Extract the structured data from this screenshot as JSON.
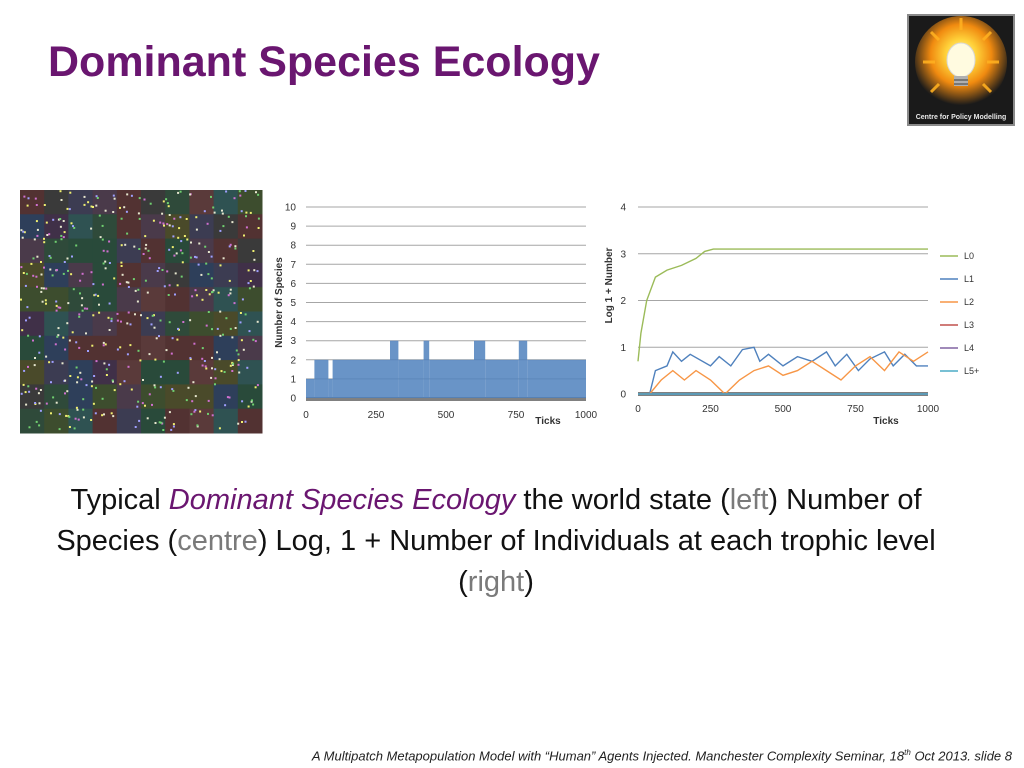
{
  "slide": {
    "title": "Dominant Species Ecology",
    "logo_text": "Centre for Policy Modelling",
    "caption": {
      "part1": "Typical ",
      "part2_italic": "Dominant Species Ecology",
      "part3": " the world state (",
      "part4_grey": "left",
      "part5": ") Number of Species (",
      "part6_grey": "centre",
      "part7": ") Log, 1 + Number of Individuals at each trophic level (",
      "part8_grey": "right",
      "part9": ")"
    },
    "footer": {
      "text_before": "A Multipatch Metapopulation Model with “Human” Agents Injected. Manchester Complexity Seminar, 18",
      "superscript": "th",
      "text_after": " Oct 2013.  slide   8"
    }
  },
  "colors": {
    "title": "#6a1670",
    "species_bar": "#4f81bd",
    "L0": "#9bbb59",
    "L1": "#4f81bd",
    "L2": "#f79646",
    "L3": "#c0504d",
    "L4": "#8064a2",
    "L5+": "#4bacc6"
  },
  "chart_data": [
    {
      "type": "line",
      "position": "centre",
      "title": "",
      "xlabel": "Ticks",
      "ylabel": "Number of Species",
      "xlim": [
        0,
        1000
      ],
      "ylim": [
        0,
        10
      ],
      "x_ticks": [
        0,
        250,
        500,
        750,
        1000
      ],
      "y_ticks": [
        0,
        1,
        2,
        3,
        4,
        5,
        6,
        7,
        8,
        9,
        10
      ],
      "grid": true,
      "series": [
        {
          "values_by_segment": [
            {
              "x": [
                0,
                30
              ],
              "y": 1
            },
            {
              "x": [
                30,
                80
              ],
              "y": 2
            },
            {
              "x": [
                80,
                95
              ],
              "y": 1
            },
            {
              "x": [
                95,
                300
              ],
              "y": 2
            },
            {
              "x": [
                300,
                330
              ],
              "y": 3
            },
            {
              "x": [
                330,
                420
              ],
              "y": 2
            },
            {
              "x": [
                420,
                440
              ],
              "y": 3
            },
            {
              "x": [
                440,
                600
              ],
              "y": 2
            },
            {
              "x": [
                600,
                640
              ],
              "y": 3
            },
            {
              "x": [
                640,
                760
              ],
              "y": 2
            },
            {
              "x": [
                760,
                790
              ],
              "y": 3
            },
            {
              "x": [
                790,
                1000
              ],
              "y": 2
            }
          ]
        }
      ]
    },
    {
      "type": "line",
      "position": "right",
      "title": "",
      "xlabel": "Ticks",
      "ylabel": "Log 1 + Number",
      "xlim": [
        0,
        1000
      ],
      "ylim": [
        0,
        4
      ],
      "x_ticks": [
        0,
        250,
        500,
        750,
        1000
      ],
      "y_ticks": [
        0,
        1,
        2,
        3,
        4
      ],
      "grid": true,
      "legend_position": "right",
      "series": [
        {
          "name": "L0",
          "x": [
            0,
            10,
            30,
            60,
            100,
            150,
            200,
            230,
            260,
            400,
            600,
            800,
            1000
          ],
          "y": [
            0.7,
            1.3,
            2.0,
            2.5,
            2.65,
            2.75,
            2.9,
            3.05,
            3.1,
            3.1,
            3.1,
            3.1,
            3.1
          ]
        },
        {
          "name": "L1",
          "x": [
            0,
            40,
            60,
            100,
            120,
            150,
            180,
            250,
            280,
            320,
            360,
            400,
            420,
            450,
            500,
            550,
            600,
            650,
            680,
            720,
            760,
            800,
            850,
            880,
            920,
            960,
            1000
          ],
          "y": [
            0,
            0,
            0.5,
            0.6,
            0.9,
            0.7,
            0.85,
            0.6,
            0.8,
            0.6,
            0.95,
            1.0,
            0.7,
            0.85,
            0.6,
            0.8,
            0.7,
            0.9,
            0.6,
            0.85,
            0.5,
            0.75,
            0.9,
            0.6,
            0.85,
            0.6,
            0.6
          ]
        },
        {
          "name": "L2",
          "x": [
            0,
            40,
            80,
            120,
            160,
            200,
            250,
            300,
            350,
            400,
            450,
            500,
            550,
            600,
            650,
            700,
            750,
            800,
            850,
            900,
            950,
            1000
          ],
          "y": [
            0,
            0,
            0.3,
            0.5,
            0.3,
            0.5,
            0.3,
            0,
            0.3,
            0.5,
            0.6,
            0.4,
            0.5,
            0.7,
            0.5,
            0.3,
            0.6,
            0.8,
            0.5,
            0.9,
            0.7,
            0.9
          ]
        },
        {
          "name": "L3",
          "x": [
            0,
            1000
          ],
          "y": [
            0,
            0
          ]
        },
        {
          "name": "L4",
          "x": [
            0,
            1000
          ],
          "y": [
            0,
            0
          ]
        },
        {
          "name": "L5+",
          "x": [
            0,
            1000
          ],
          "y": [
            0,
            0
          ]
        }
      ]
    }
  ]
}
